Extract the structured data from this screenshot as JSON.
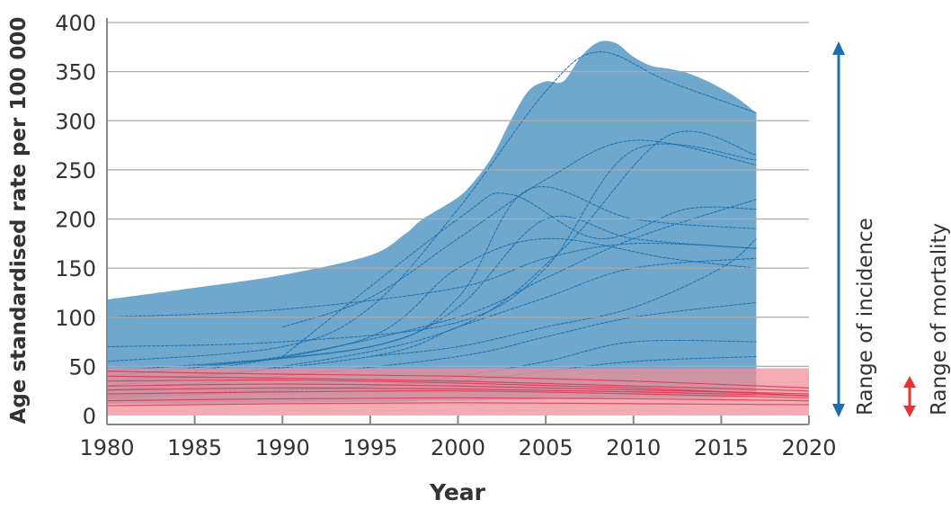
{
  "chart_data": {
    "type": "area",
    "xlabel": "Year",
    "ylabel": "Age standardised rate per 100 000",
    "xlim": [
      1980,
      2020
    ],
    "ylim": [
      0,
      400
    ],
    "xticks": [
      1980,
      1985,
      1990,
      1995,
      2000,
      2005,
      2010,
      2015,
      2020
    ],
    "yticks": [
      0,
      50,
      100,
      150,
      200,
      250,
      300,
      350,
      400
    ],
    "grid": "horizontal",
    "colors": {
      "incidence": "#6fa8cc",
      "incidence_line": "#1a6fb0",
      "mortality": "#f08f98",
      "mortality_line": "#e0304a",
      "arrow_incidence": "#1a6fb0",
      "arrow_mortality": "#e53535"
    },
    "incidence_range": {
      "x": [
        1980,
        1985,
        1990,
        1995,
        1997,
        1998,
        2000,
        2001,
        2002,
        2003,
        2004,
        2005,
        2006,
        2007,
        2008,
        2009,
        2010,
        2011,
        2012,
        2013,
        2014,
        2015,
        2016,
        2017
      ],
      "upper": [
        118,
        130,
        143,
        163,
        185,
        200,
        222,
        240,
        265,
        300,
        330,
        340,
        340,
        365,
        380,
        379,
        365,
        356,
        353,
        349,
        342,
        333,
        322,
        308
      ],
      "lower": [
        12,
        12,
        13,
        14,
        14,
        15,
        15,
        15,
        16,
        16,
        16,
        17,
        17,
        17,
        18,
        18,
        18,
        18,
        18,
        18,
        18,
        18,
        19,
        20
      ]
    },
    "mortality_range": {
      "x": [
        1980,
        2020
      ],
      "upper": [
        48,
        48
      ],
      "lower": [
        0,
        0
      ]
    },
    "incidence_series": [
      {
        "x": [
          1980,
          1990,
          2000,
          2005,
          2010,
          2017
        ],
        "y": [
          100,
          108,
          130,
          160,
          175,
          170
        ]
      },
      {
        "x": [
          1980,
          1990,
          1995,
          2000,
          2005,
          2008,
          2012,
          2017
        ],
        "y": [
          55,
          70,
          110,
          210,
          330,
          370,
          340,
          308
        ]
      },
      {
        "x": [
          1980,
          1990,
          2000,
          2005,
          2010,
          2017
        ],
        "y": [
          70,
          75,
          95,
          150,
          270,
          260
        ]
      },
      {
        "x": [
          1990,
          1995,
          2000,
          2005,
          2010,
          2017
        ],
        "y": [
          90,
          120,
          180,
          240,
          280,
          255
        ]
      },
      {
        "x": [
          1980,
          1995,
          2000,
          2004,
          2010,
          2017
        ],
        "y": [
          45,
          70,
          120,
          230,
          200,
          190
        ]
      },
      {
        "x": [
          1980,
          1990,
          2000,
          2005,
          2010,
          2017
        ],
        "y": [
          40,
          60,
          100,
          140,
          180,
          220
        ]
      },
      {
        "x": [
          1985,
          1995,
          2000,
          2005,
          2012,
          2017
        ],
        "y": [
          45,
          80,
          150,
          180,
          160,
          150
        ]
      },
      {
        "x": [
          1980,
          1990,
          2000,
          2006,
          2012,
          2017
        ],
        "y": [
          35,
          50,
          90,
          170,
          285,
          265
        ]
      },
      {
        "x": [
          1980,
          1995,
          2000,
          2005,
          2010,
          2017
        ],
        "y": [
          30,
          60,
          90,
          120,
          150,
          160
        ]
      },
      {
        "x": [
          1980,
          1990,
          2000,
          2005,
          2010,
          2017
        ],
        "y": [
          25,
          40,
          60,
          80,
          100,
          115
        ]
      },
      {
        "x": [
          1980,
          1995,
          2000,
          2005,
          2010,
          2017
        ],
        "y": [
          20,
          30,
          40,
          55,
          75,
          75
        ]
      },
      {
        "x": [
          1990,
          2000,
          2003,
          2008,
          2013,
          2017
        ],
        "y": [
          60,
          200,
          225,
          180,
          210,
          210
        ]
      },
      {
        "x": [
          1985,
          1995,
          2000,
          2005,
          2010,
          2017
        ],
        "y": [
          50,
          70,
          110,
          200,
          180,
          170
        ]
      },
      {
        "x": [
          1980,
          1990,
          2000,
          2005,
          2010,
          2017
        ],
        "y": [
          18,
          25,
          35,
          45,
          55,
          60
        ]
      },
      {
        "x": [
          1995,
          2000,
          2005,
          2010,
          2015,
          2017
        ],
        "y": [
          60,
          70,
          90,
          110,
          150,
          180
        ]
      }
    ],
    "mortality_series": [
      {
        "x": [
          1980,
          1990,
          2000,
          2010,
          2020
        ],
        "y": [
          40,
          38,
          35,
          30,
          25
        ]
      },
      {
        "x": [
          1980,
          1990,
          2000,
          2010,
          2020
        ],
        "y": [
          30,
          32,
          30,
          26,
          22
        ]
      },
      {
        "x": [
          1980,
          1990,
          2000,
          2010,
          2020
        ],
        "y": [
          22,
          24,
          25,
          22,
          18
        ]
      },
      {
        "x": [
          1980,
          1990,
          2000,
          2010,
          2020
        ],
        "y": [
          15,
          17,
          18,
          17,
          15
        ]
      },
      {
        "x": [
          1980,
          1990,
          2000,
          2010,
          2020
        ],
        "y": [
          10,
          12,
          13,
          12,
          11
        ]
      },
      {
        "x": [
          1980,
          1990,
          2000,
          2010,
          2020
        ],
        "y": [
          45,
          42,
          40,
          35,
          28
        ]
      },
      {
        "x": [
          1980,
          1990,
          2000,
          2010,
          2020
        ],
        "y": [
          35,
          36,
          33,
          28,
          20
        ]
      },
      {
        "x": [
          1980,
          1990,
          2000,
          2010,
          2020
        ],
        "y": [
          26,
          28,
          27,
          24,
          20
        ]
      }
    ]
  },
  "annotations": {
    "incidence": "Range of incidence",
    "mortality": "Range of mortality"
  }
}
